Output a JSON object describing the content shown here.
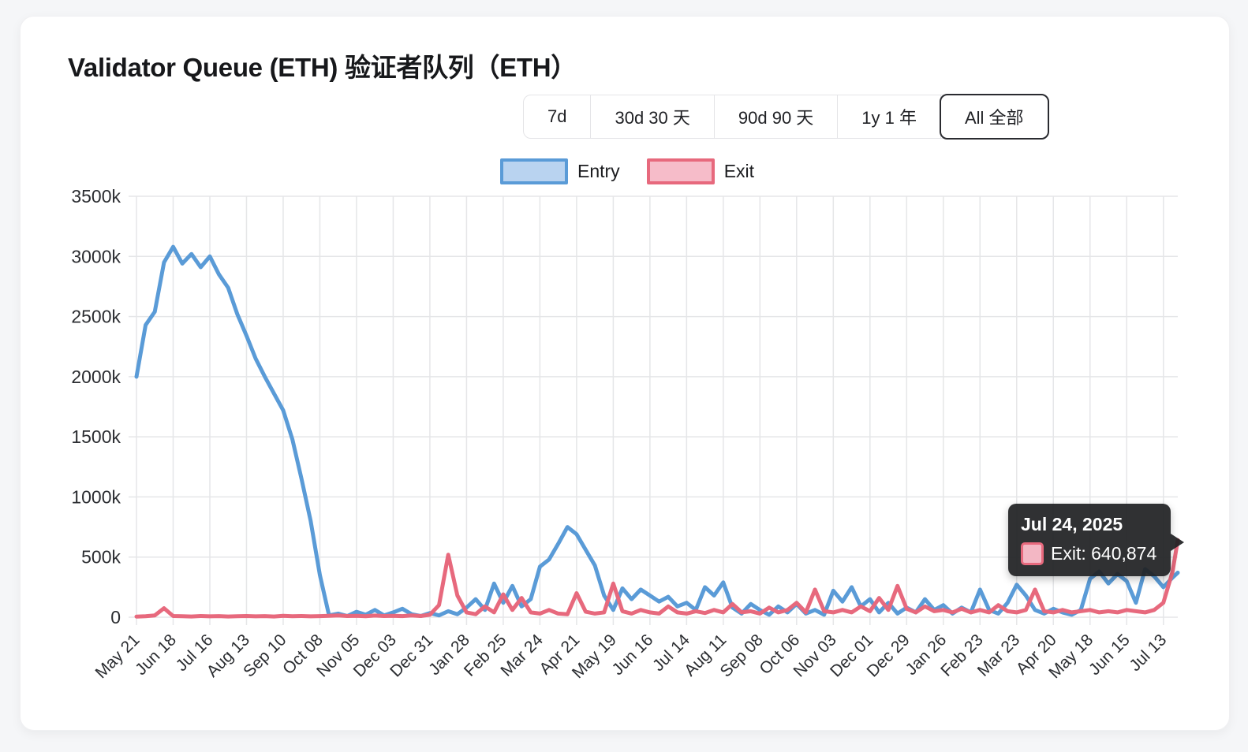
{
  "page": {
    "background": "#f5f6f8",
    "card_background": "#ffffff"
  },
  "header": {
    "title": "Validator Queue (ETH)  验证者队列（ETH）"
  },
  "range_buttons": [
    {
      "id": "7d",
      "label": "7d",
      "selected": false
    },
    {
      "id": "30d",
      "label": "30d 30 天",
      "selected": false
    },
    {
      "id": "90d",
      "label": "90d 90 天",
      "selected": false
    },
    {
      "id": "1y",
      "label": "1y 1 年",
      "selected": false
    },
    {
      "id": "all",
      "label": "All 全部",
      "selected": true
    }
  ],
  "legend": [
    {
      "id": "entry",
      "label": "Entry",
      "border_color": "#5a9bd7",
      "fill_color": "#b9d3f0"
    },
    {
      "id": "exit",
      "label": "Exit",
      "border_color": "#e7697d",
      "fill_color": "#f6bcc9"
    }
  ],
  "tooltip": {
    "date": "Jul 24, 2025",
    "series": "Exit",
    "value": "640,874",
    "label": "Exit: 640,874",
    "swatch_fill": "#f3b7c4",
    "swatch_border": "#e7697d"
  },
  "chart_data": {
    "type": "line",
    "title": "Validator Queue (ETH) 验证者队列（ETH）",
    "xlabel": "",
    "ylabel": "",
    "ylim": [
      0,
      3500000
    ],
    "y_tick_interval": 500000,
    "y_tick_labels": [
      "0",
      "500k",
      "1000k",
      "1500k",
      "2000k",
      "2500k",
      "3000k",
      "3500k"
    ],
    "grid": true,
    "legend_position": "top",
    "grid_color": "#e5e6e8",
    "axis_text_color": "#2b2d31",
    "x_range_days": 795,
    "x_axis": {
      "start_date": "2023-05-21",
      "end_date": "2025-07-24",
      "tick_interval_days": 28,
      "tick_labels": [
        "May 21",
        "Jun 18",
        "Jul 16",
        "Aug 13",
        "Sep 10",
        "Oct 08",
        "Nov 05",
        "Dec 03",
        "Dec 31",
        "Jan 28",
        "Feb 25",
        "Mar 24",
        "Apr 21",
        "May 19",
        "Jun 16",
        "Jul 14",
        "Aug 11",
        "Sep 08",
        "Oct 06",
        "Nov 03",
        "Dec 01",
        "Dec 29",
        "Jan 26",
        "Feb 23",
        "Mar 23",
        "Apr 20",
        "May 18",
        "Jun 15",
        "Jul 13"
      ]
    },
    "series": [
      {
        "name": "Entry",
        "color": "#5a9bd7",
        "points": [
          [
            0,
            2000000
          ],
          [
            7,
            2430000
          ],
          [
            14,
            2540000
          ],
          [
            21,
            2950000
          ],
          [
            28,
            3080000
          ],
          [
            35,
            2940000
          ],
          [
            42,
            3020000
          ],
          [
            49,
            2910000
          ],
          [
            56,
            3000000
          ],
          [
            63,
            2850000
          ],
          [
            70,
            2740000
          ],
          [
            77,
            2520000
          ],
          [
            84,
            2340000
          ],
          [
            91,
            2150000
          ],
          [
            98,
            2000000
          ],
          [
            105,
            1860000
          ],
          [
            112,
            1720000
          ],
          [
            119,
            1480000
          ],
          [
            126,
            1150000
          ],
          [
            133,
            800000
          ],
          [
            140,
            350000
          ],
          [
            147,
            15000
          ],
          [
            154,
            30000
          ],
          [
            161,
            10000
          ],
          [
            168,
            45000
          ],
          [
            175,
            20000
          ],
          [
            182,
            60000
          ],
          [
            189,
            15000
          ],
          [
            196,
            40000
          ],
          [
            203,
            70000
          ],
          [
            210,
            25000
          ],
          [
            217,
            10000
          ],
          [
            224,
            35000
          ],
          [
            231,
            15000
          ],
          [
            238,
            50000
          ],
          [
            245,
            25000
          ],
          [
            252,
            80000
          ],
          [
            259,
            150000
          ],
          [
            266,
            60000
          ],
          [
            273,
            280000
          ],
          [
            280,
            120000
          ],
          [
            287,
            260000
          ],
          [
            294,
            90000
          ],
          [
            301,
            150000
          ],
          [
            308,
            420000
          ],
          [
            315,
            480000
          ],
          [
            322,
            610000
          ],
          [
            329,
            750000
          ],
          [
            336,
            690000
          ],
          [
            343,
            560000
          ],
          [
            350,
            430000
          ],
          [
            357,
            180000
          ],
          [
            364,
            60000
          ],
          [
            371,
            240000
          ],
          [
            378,
            150000
          ],
          [
            385,
            230000
          ],
          [
            392,
            180000
          ],
          [
            399,
            130000
          ],
          [
            406,
            170000
          ],
          [
            413,
            90000
          ],
          [
            420,
            120000
          ],
          [
            427,
            60000
          ],
          [
            434,
            250000
          ],
          [
            441,
            180000
          ],
          [
            448,
            290000
          ],
          [
            455,
            80000
          ],
          [
            462,
            30000
          ],
          [
            469,
            110000
          ],
          [
            476,
            60000
          ],
          [
            483,
            20000
          ],
          [
            490,
            90000
          ],
          [
            497,
            40000
          ],
          [
            504,
            110000
          ],
          [
            511,
            30000
          ],
          [
            518,
            60000
          ],
          [
            525,
            20000
          ],
          [
            532,
            220000
          ],
          [
            539,
            130000
          ],
          [
            546,
            250000
          ],
          [
            553,
            90000
          ],
          [
            560,
            150000
          ],
          [
            567,
            40000
          ],
          [
            574,
            120000
          ],
          [
            581,
            30000
          ],
          [
            588,
            80000
          ],
          [
            595,
            40000
          ],
          [
            602,
            150000
          ],
          [
            609,
            60000
          ],
          [
            616,
            100000
          ],
          [
            623,
            30000
          ],
          [
            630,
            80000
          ],
          [
            637,
            40000
          ],
          [
            644,
            230000
          ],
          [
            651,
            60000
          ],
          [
            658,
            30000
          ],
          [
            665,
            120000
          ],
          [
            672,
            270000
          ],
          [
            679,
            180000
          ],
          [
            686,
            60000
          ],
          [
            693,
            30000
          ],
          [
            700,
            70000
          ],
          [
            707,
            40000
          ],
          [
            714,
            20000
          ],
          [
            721,
            60000
          ],
          [
            728,
            320000
          ],
          [
            735,
            380000
          ],
          [
            742,
            280000
          ],
          [
            749,
            360000
          ],
          [
            756,
            300000
          ],
          [
            763,
            120000
          ],
          [
            770,
            400000
          ],
          [
            777,
            340000
          ],
          [
            784,
            250000
          ],
          [
            791,
            330000
          ],
          [
            795,
            370000
          ]
        ]
      },
      {
        "name": "Exit",
        "color": "#e7697d",
        "points": [
          [
            0,
            5000
          ],
          [
            7,
            8000
          ],
          [
            14,
            15000
          ],
          [
            21,
            75000
          ],
          [
            28,
            10000
          ],
          [
            35,
            8000
          ],
          [
            42,
            6000
          ],
          [
            49,
            10000
          ],
          [
            56,
            7000
          ],
          [
            63,
            9000
          ],
          [
            70,
            6000
          ],
          [
            77,
            8000
          ],
          [
            84,
            10000
          ],
          [
            91,
            7000
          ],
          [
            98,
            9000
          ],
          [
            105,
            6000
          ],
          [
            112,
            12000
          ],
          [
            119,
            8000
          ],
          [
            126,
            10000
          ],
          [
            133,
            7000
          ],
          [
            140,
            9000
          ],
          [
            147,
            12000
          ],
          [
            154,
            15000
          ],
          [
            161,
            10000
          ],
          [
            168,
            12000
          ],
          [
            175,
            8000
          ],
          [
            182,
            14000
          ],
          [
            189,
            10000
          ],
          [
            196,
            12000
          ],
          [
            203,
            9000
          ],
          [
            210,
            15000
          ],
          [
            217,
            10000
          ],
          [
            224,
            20000
          ],
          [
            231,
            100000
          ],
          [
            238,
            520000
          ],
          [
            245,
            180000
          ],
          [
            252,
            40000
          ],
          [
            259,
            25000
          ],
          [
            266,
            90000
          ],
          [
            273,
            40000
          ],
          [
            280,
            190000
          ],
          [
            287,
            60000
          ],
          [
            294,
            160000
          ],
          [
            301,
            40000
          ],
          [
            308,
            30000
          ],
          [
            315,
            60000
          ],
          [
            322,
            30000
          ],
          [
            329,
            25000
          ],
          [
            336,
            200000
          ],
          [
            343,
            45000
          ],
          [
            350,
            30000
          ],
          [
            357,
            40000
          ],
          [
            364,
            280000
          ],
          [
            371,
            50000
          ],
          [
            378,
            30000
          ],
          [
            385,
            60000
          ],
          [
            392,
            40000
          ],
          [
            399,
            30000
          ],
          [
            406,
            90000
          ],
          [
            413,
            40000
          ],
          [
            420,
            30000
          ],
          [
            427,
            50000
          ],
          [
            434,
            35000
          ],
          [
            441,
            60000
          ],
          [
            448,
            40000
          ],
          [
            455,
            110000
          ],
          [
            462,
            40000
          ],
          [
            469,
            50000
          ],
          [
            476,
            30000
          ],
          [
            483,
            80000
          ],
          [
            490,
            40000
          ],
          [
            497,
            60000
          ],
          [
            504,
            120000
          ],
          [
            511,
            40000
          ],
          [
            518,
            230000
          ],
          [
            525,
            50000
          ],
          [
            532,
            40000
          ],
          [
            539,
            60000
          ],
          [
            546,
            40000
          ],
          [
            553,
            90000
          ],
          [
            560,
            50000
          ],
          [
            567,
            160000
          ],
          [
            574,
            60000
          ],
          [
            581,
            260000
          ],
          [
            588,
            70000
          ],
          [
            595,
            40000
          ],
          [
            602,
            90000
          ],
          [
            609,
            50000
          ],
          [
            616,
            60000
          ],
          [
            623,
            40000
          ],
          [
            630,
            70000
          ],
          [
            637,
            40000
          ],
          [
            644,
            60000
          ],
          [
            651,
            40000
          ],
          [
            658,
            100000
          ],
          [
            665,
            50000
          ],
          [
            672,
            40000
          ],
          [
            679,
            60000
          ],
          [
            686,
            230000
          ],
          [
            693,
            50000
          ],
          [
            700,
            40000
          ],
          [
            707,
            60000
          ],
          [
            714,
            40000
          ],
          [
            721,
            50000
          ],
          [
            728,
            60000
          ],
          [
            735,
            40000
          ],
          [
            742,
            50000
          ],
          [
            749,
            40000
          ],
          [
            756,
            60000
          ],
          [
            763,
            50000
          ],
          [
            770,
            40000
          ],
          [
            777,
            60000
          ],
          [
            784,
            120000
          ],
          [
            791,
            380000
          ],
          [
            795,
            640874
          ]
        ]
      }
    ]
  }
}
